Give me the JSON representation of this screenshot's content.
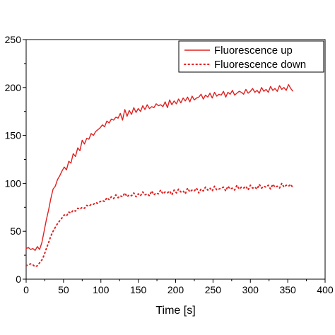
{
  "chart_data": {
    "type": "line",
    "title": "",
    "xlabel": "Time [s]",
    "ylabel": "",
    "xlim": [
      0,
      400
    ],
    "ylim": [
      0,
      250
    ],
    "xticks": [
      0,
      50,
      100,
      150,
      200,
      250,
      300,
      350,
      400
    ],
    "yticks": [
      0,
      50,
      100,
      150,
      200,
      250
    ],
    "grid": false,
    "legend_position": "top-right",
    "series": [
      {
        "name": "Fluorescence up",
        "style": "solid",
        "color": "#e02020",
        "x": [
          0,
          3,
          6,
          9,
          12,
          15,
          18,
          21,
          24,
          27,
          30,
          33,
          36,
          39,
          42,
          45,
          48,
          51,
          54,
          57,
          60,
          63,
          66,
          69,
          72,
          75,
          78,
          81,
          84,
          87,
          90,
          93,
          96,
          99,
          102,
          105,
          108,
          111,
          114,
          117,
          120,
          123,
          126,
          129,
          132,
          135,
          138,
          141,
          144,
          147,
          150,
          153,
          156,
          159,
          162,
          165,
          168,
          171,
          174,
          177,
          180,
          183,
          186,
          189,
          192,
          195,
          198,
          201,
          204,
          207,
          210,
          213,
          216,
          219,
          222,
          225,
          228,
          231,
          234,
          237,
          240,
          243,
          246,
          249,
          252,
          255,
          258,
          261,
          264,
          267,
          270,
          273,
          276,
          279,
          282,
          285,
          288,
          291,
          294,
          297,
          300,
          303,
          306,
          309,
          312,
          315,
          318,
          321,
          324,
          327,
          330,
          333,
          336,
          339,
          342,
          345,
          348,
          351,
          354,
          357
        ],
        "y": [
          32,
          33,
          31,
          32,
          30,
          34,
          31,
          38,
          50,
          62,
          72,
          84,
          94,
          97,
          104,
          108,
          113,
          117,
          114,
          123,
          121,
          131,
          128,
          137,
          134,
          145,
          141,
          147,
          146,
          152,
          150,
          154,
          156,
          158,
          161,
          159,
          165,
          163,
          167,
          166,
          169,
          168,
          173,
          166,
          177,
          170,
          176,
          172,
          179,
          174,
          178,
          175,
          181,
          177,
          182,
          178,
          180,
          179,
          183,
          181,
          182,
          180,
          185,
          179,
          187,
          182,
          186,
          183,
          188,
          184,
          189,
          186,
          190,
          185,
          191,
          187,
          189,
          190,
          193,
          188,
          192,
          190,
          194,
          189,
          195,
          191,
          193,
          192,
          196,
          190,
          195,
          193,
          197,
          192,
          194,
          196,
          195,
          193,
          198,
          194,
          196,
          199,
          195,
          197,
          194,
          200,
          196,
          198,
          195,
          201,
          197,
          199,
          196,
          202,
          198,
          200,
          197,
          203,
          199,
          196
        ]
      },
      {
        "name": "Fluorescence down",
        "style": "dotted",
        "color": "#e02020",
        "x": [
          0,
          3,
          6,
          9,
          12,
          15,
          18,
          21,
          24,
          27,
          30,
          33,
          36,
          39,
          42,
          45,
          48,
          51,
          54,
          57,
          60,
          63,
          66,
          69,
          72,
          75,
          78,
          81,
          84,
          87,
          90,
          93,
          96,
          99,
          102,
          105,
          108,
          111,
          114,
          117,
          120,
          123,
          126,
          129,
          132,
          135,
          138,
          141,
          144,
          147,
          150,
          153,
          156,
          159,
          162,
          165,
          168,
          171,
          174,
          177,
          180,
          183,
          186,
          189,
          192,
          195,
          198,
          201,
          204,
          207,
          210,
          213,
          216,
          219,
          222,
          225,
          228,
          231,
          234,
          237,
          240,
          243,
          246,
          249,
          252,
          255,
          258,
          261,
          264,
          267,
          270,
          273,
          276,
          279,
          282,
          285,
          288,
          291,
          294,
          297,
          300,
          303,
          306,
          309,
          312,
          315,
          318,
          321,
          324,
          327,
          330,
          333,
          336,
          339,
          342,
          345,
          348,
          351,
          354,
          357
        ],
        "y": [
          14,
          15,
          16,
          15,
          13,
          14,
          17,
          20,
          25,
          32,
          38,
          45,
          50,
          54,
          58,
          61,
          64,
          67,
          66,
          70,
          69,
          72,
          71,
          74,
          73,
          75,
          74,
          77,
          76,
          78,
          78,
          80,
          79,
          81,
          82,
          81,
          85,
          83,
          86,
          84,
          88,
          85,
          87,
          86,
          90,
          86,
          88,
          87,
          90,
          86,
          89,
          87,
          91,
          88,
          89,
          87,
          92,
          88,
          90,
          89,
          93,
          89,
          91,
          90,
          92,
          88,
          93,
          90,
          94,
          91,
          92,
          89,
          95,
          91,
          93,
          92,
          95,
          90,
          94,
          92,
          96,
          93,
          95,
          92,
          97,
          93,
          94,
          95,
          96,
          92,
          97,
          94,
          95,
          93,
          98,
          94,
          96,
          95,
          97,
          93,
          98,
          95,
          96,
          94,
          99,
          95,
          97,
          96,
          98,
          94,
          99,
          96,
          97,
          95,
          100,
          96,
          98,
          97,
          99,
          95
        ]
      }
    ]
  }
}
